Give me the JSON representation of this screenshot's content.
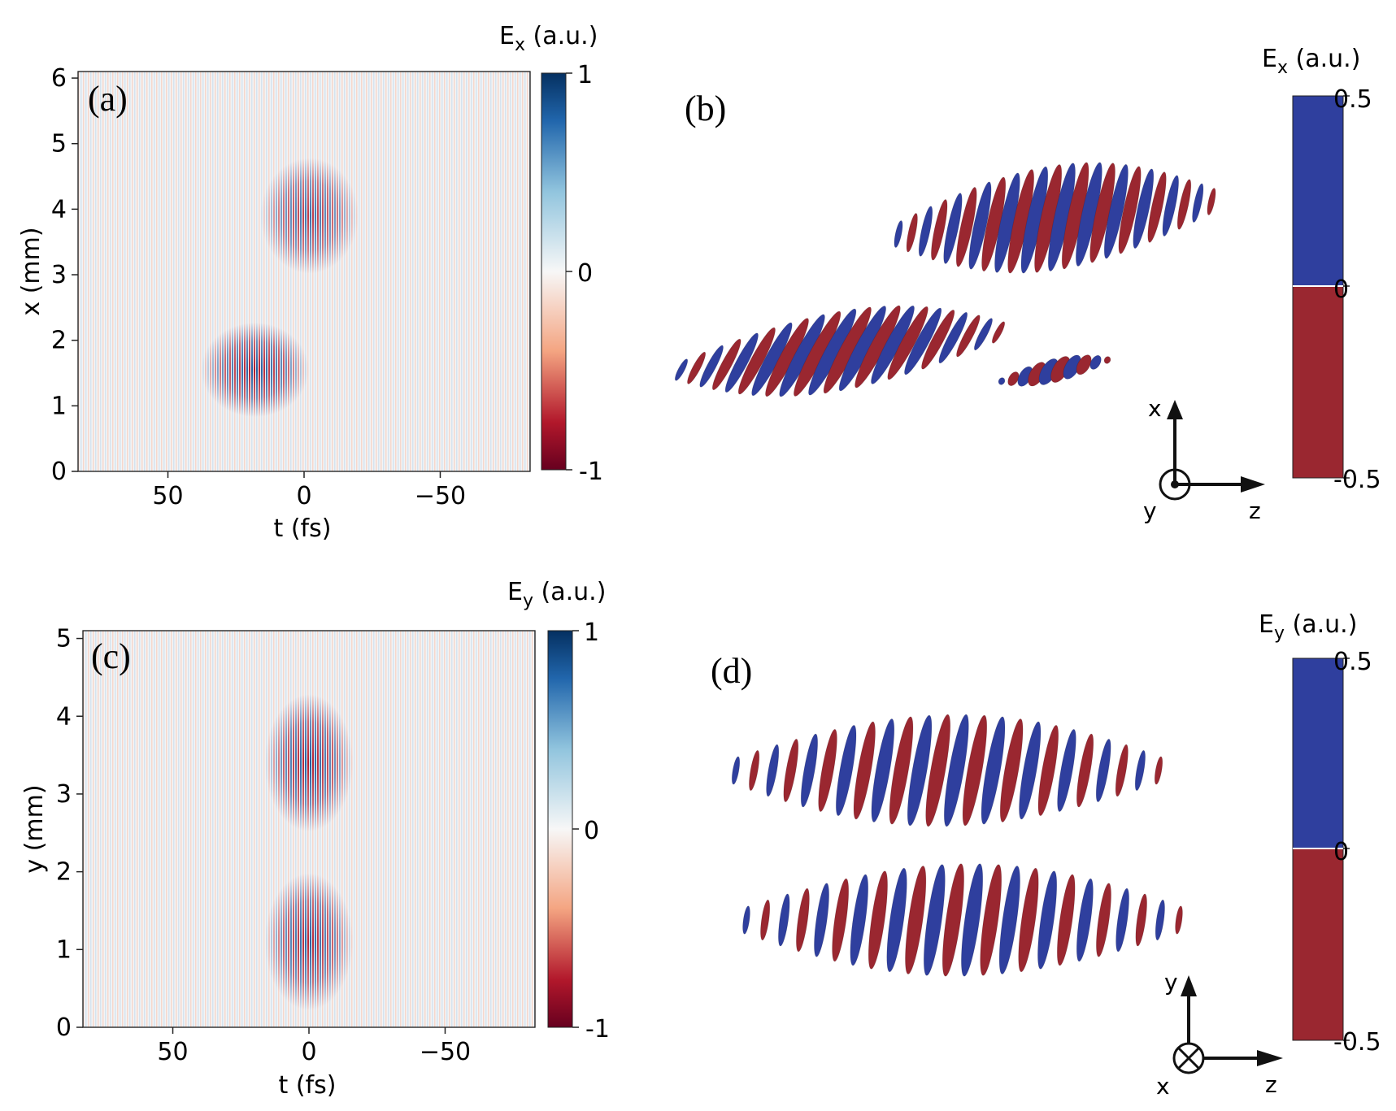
{
  "panels": [
    {
      "label": "(a)",
      "xlabel": "t (fs)",
      "ylabel": "x (mm)",
      "x_ticks": [
        "50",
        "0",
        "−50"
      ],
      "y_ticks": [
        "0",
        "1",
        "2",
        "3",
        "4",
        "5",
        "6"
      ],
      "colorbar": {
        "title": "Ex (a.u.)",
        "ticks": [
          "1",
          "0",
          "-1"
        ]
      }
    },
    {
      "label": "(b)",
      "colorbar": {
        "title": "Ex (a.u.)",
        "ticks": [
          "0.5",
          "0",
          "-0.5"
        ]
      },
      "axes": [
        "x",
        "y",
        "z"
      ]
    },
    {
      "label": "(c)",
      "xlabel": "t (fs)",
      "ylabel": "y (mm)",
      "x_ticks": [
        "50",
        "0",
        "−50"
      ],
      "y_ticks": [
        "0",
        "1",
        "2",
        "3",
        "4",
        "5"
      ],
      "colorbar": {
        "title": "Ey (a.u.)",
        "ticks": [
          "1",
          "0",
          "-1"
        ]
      }
    },
    {
      "label": "(d)",
      "colorbar": {
        "title": "Ey (a.u.)",
        "ticks": [
          "0.5",
          "0",
          "-0.5"
        ]
      },
      "axes": [
        "y",
        "x",
        "z"
      ]
    }
  ],
  "chart_data": [
    {
      "type": "heatmap",
      "panel": "(a)",
      "xlabel": "t (fs)",
      "ylabel": "x (mm)",
      "xlim": [
        83,
        -83
      ],
      "ylim": [
        0,
        6.1
      ],
      "colorbar": {
        "title": "Ex (a.u.)",
        "range": [
          -1,
          1
        ],
        "colormap": "RdBu diverging"
      },
      "pulses": [
        {
          "t_center": -2,
          "x_center": 3.9,
          "t_width": 10,
          "x_width": 0.55,
          "amplitude": 0.85
        },
        {
          "t_center": 18,
          "x_center": 1.55,
          "t_width": 11,
          "x_width": 0.45,
          "amplitude": 1.0
        }
      ]
    },
    {
      "type": "other",
      "panel": "(b)",
      "description_kind": "3D isosurface of Ex",
      "colorbar": {
        "title": "Ex (a.u.)",
        "range": [
          -0.5,
          0.5
        ],
        "colors": {
          "positive": "#2f3f9e",
          "negative": "#9a2730"
        }
      },
      "orientation_axes": [
        "x",
        "y",
        "z"
      ]
    },
    {
      "type": "heatmap",
      "panel": "(c)",
      "xlabel": "t (fs)",
      "ylabel": "y (mm)",
      "xlim": [
        83,
        -83
      ],
      "ylim": [
        0,
        5.1
      ],
      "colorbar": {
        "title": "Ey (a.u.)",
        "range": [
          -1,
          1
        ],
        "colormap": "RdBu diverging"
      },
      "pulses": [
        {
          "t_center": 0,
          "x_center": 3.4,
          "t_width": 9,
          "x_width": 0.55,
          "amplitude": 1.0
        },
        {
          "t_center": 0,
          "x_center": 1.1,
          "t_width": 9,
          "x_width": 0.55,
          "amplitude": 0.95
        }
      ]
    },
    {
      "type": "other",
      "panel": "(d)",
      "description_kind": "3D isosurface of Ey",
      "colorbar": {
        "title": "Ey (a.u.)",
        "range": [
          -0.5,
          0.5
        ],
        "colors": {
          "positive": "#2f3f9e",
          "negative": "#9a2730"
        }
      },
      "orientation_axes": [
        "y",
        "x",
        "z"
      ]
    }
  ]
}
